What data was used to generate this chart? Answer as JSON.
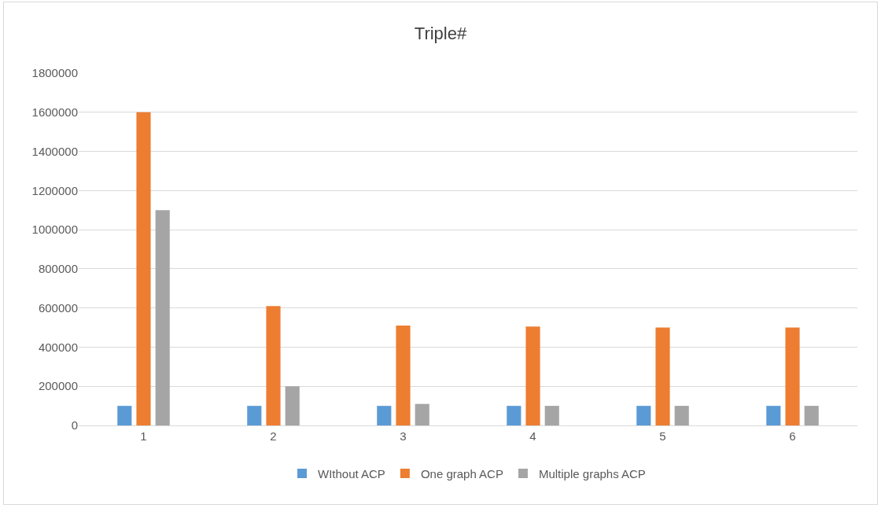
{
  "chart_data": {
    "type": "bar",
    "title": "Triple#",
    "categories": [
      "1",
      "2",
      "3",
      "4",
      "5",
      "6"
    ],
    "series": [
      {
        "name": "WIthout ACP",
        "color": "#5b9bd5",
        "values": [
          100000,
          100000,
          100000,
          100000,
          100000,
          100000
        ]
      },
      {
        "name": "One graph ACP",
        "color": "#ed7d31",
        "values": [
          1600000,
          610000,
          510000,
          505000,
          500000,
          500000
        ]
      },
      {
        "name": "Multiple graphs ACP",
        "color": "#a5a5a5",
        "values": [
          1100000,
          200000,
          110000,
          100000,
          100000,
          100000
        ]
      }
    ],
    "ylim": [
      0,
      1800000
    ],
    "yticks": [
      0,
      200000,
      400000,
      600000,
      800000,
      1000000,
      1200000,
      1400000,
      1600000,
      1800000
    ],
    "grid": "y",
    "legend": "bottom"
  }
}
